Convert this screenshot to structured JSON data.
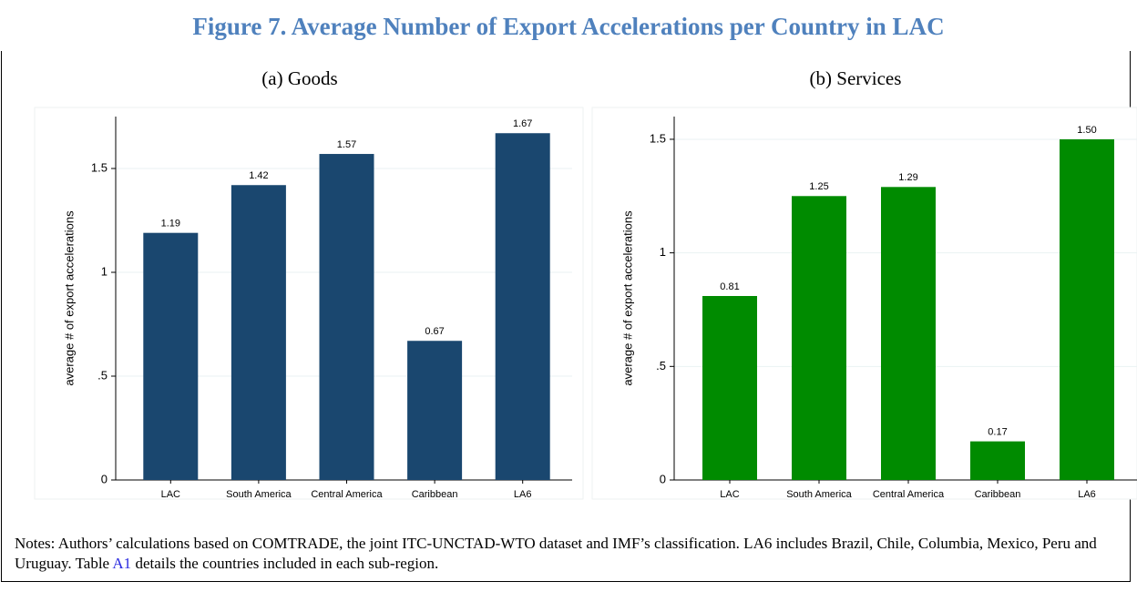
{
  "title": "Figure 7. Average Number of Export Accelerations per Country in LAC",
  "chart_data": [
    {
      "type": "bar",
      "title": "(a) Goods",
      "y_label": "average # of export accelerations",
      "categories": [
        "LAC",
        "South America",
        "Central America",
        "Caribbean",
        "LA6"
      ],
      "values": [
        1.19,
        1.42,
        1.57,
        0.67,
        1.67
      ],
      "value_labels": [
        "1.19",
        "1.42",
        "1.57",
        "0.67",
        "1.67"
      ],
      "color": "#1a476f",
      "ylim": [
        0,
        1.75
      ],
      "yticks": [
        0,
        {
          "value": 0.5,
          "label": ".5"
        },
        1,
        1.5
      ],
      "grid": true
    },
    {
      "type": "bar",
      "title": "(b) Services",
      "y_label": "average # of export accelerations",
      "categories": [
        "LAC",
        "South America",
        "Central America",
        "Caribbean",
        "LA6"
      ],
      "values": [
        0.81,
        1.25,
        1.29,
        0.17,
        1.5
      ],
      "value_labels": [
        "0.81",
        "1.25",
        "1.29",
        "0.17",
        "1.50"
      ],
      "color": "#008b00",
      "ylim": [
        0,
        1.6
      ],
      "yticks": [
        0,
        {
          "value": 0.5,
          "label": ".5"
        },
        1,
        1.5
      ],
      "grid": true
    }
  ],
  "notes": {
    "before": "Notes: Authors’ calculations based on COMTRADE, the joint ITC-UNCTAD-WTO dataset and IMF’s classification. LA6 includes Brazil, Chile, Columbia, Mexico, Peru and Uruguay. Table",
    "link": "A1",
    "after": "details the countries included in each sub-region."
  }
}
